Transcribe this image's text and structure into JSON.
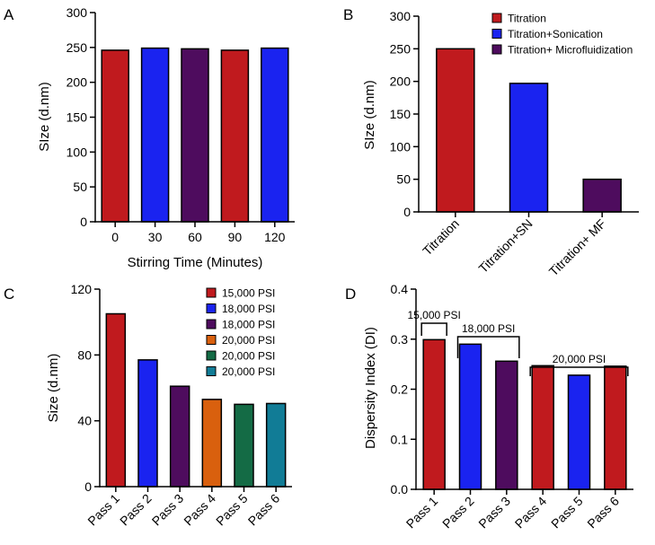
{
  "chart_data": [
    {
      "panel": "A",
      "type": "bar",
      "categories": [
        "0",
        "30",
        "60",
        "90",
        "120"
      ],
      "values": [
        246,
        249,
        248,
        246,
        249
      ],
      "bar_colors": [
        "#c01a1e",
        "#1a23f0",
        "#4e0c5e",
        "#c01a1e",
        "#1a23f0"
      ],
      "xlabel": "Stirring Time (Minutes)",
      "ylabel": "SIze (d.nm)",
      "ylim": [
        0,
        300
      ],
      "yticks": [
        "0",
        "50",
        "100",
        "150",
        "200",
        "250",
        "300"
      ],
      "ytick_values": [
        0,
        50,
        100,
        150,
        200,
        250,
        300
      ],
      "grid": false
    },
    {
      "panel": "B",
      "type": "bar",
      "categories": [
        "Titration",
        "Titration+SN",
        "Titration+ MF"
      ],
      "values": [
        250,
        197,
        50
      ],
      "bar_colors": [
        "#c01a1e",
        "#1a23f0",
        "#4e0c5e"
      ],
      "xlabel": "",
      "ylabel": "SIze (d.nm)",
      "ylim": [
        0,
        300
      ],
      "yticks": [
        "0",
        "50",
        "100",
        "150",
        "200",
        "250",
        "300"
      ],
      "ytick_values": [
        0,
        50,
        100,
        150,
        200,
        250,
        300
      ],
      "legend": [
        {
          "label": "Titration",
          "color": "#c01a1e"
        },
        {
          "label": "Titration+Sonication",
          "color": "#1a23f0"
        },
        {
          "label": "Titration+ Microfluidization",
          "color": "#4e0c5e"
        }
      ],
      "legend_position": "top-right",
      "grid": false
    },
    {
      "panel": "C",
      "type": "bar",
      "categories": [
        "Pass 1",
        "Pass 2",
        "Pass 3",
        "Pass 4",
        "Pass 5",
        "Pass 6"
      ],
      "values": [
        105,
        77,
        61,
        53,
        50,
        50.5
      ],
      "bar_colors": [
        "#c01a1e",
        "#1a23f0",
        "#4e0c5e",
        "#d9600e",
        "#146b45",
        "#117c96"
      ],
      "xlabel": "",
      "ylabel": "Size (d.nm)",
      "ylim": [
        0,
        120
      ],
      "yticks": [
        "0",
        "40",
        "80",
        "120"
      ],
      "ytick_values": [
        0,
        40,
        80,
        120
      ],
      "legend": [
        {
          "label": "15,000 PSI",
          "color": "#c01a1e"
        },
        {
          "label": "18,000 PSI",
          "color": "#1a23f0"
        },
        {
          "label": "18,000 PSI",
          "color": "#4e0c5e"
        },
        {
          "label": "20,000 PSI",
          "color": "#d9600e"
        },
        {
          "label": "20,000 PSI",
          "color": "#146b45"
        },
        {
          "label": "20,000 PSI",
          "color": "#117c96"
        }
      ],
      "legend_position": "top-right",
      "grid": false
    },
    {
      "panel": "D",
      "type": "bar",
      "categories": [
        "Pass 1",
        "Pass 2",
        "Pass 3",
        "Pass 4",
        "Pass 5",
        "Pass 6"
      ],
      "values": [
        0.299,
        0.29,
        0.256,
        0.247,
        0.228,
        0.246
      ],
      "bar_colors": [
        "#c01a1e",
        "#1a23f0",
        "#4e0c5e",
        "#c01a1e",
        "#1a23f0",
        "#c01a1e"
      ],
      "xlabel": "",
      "ylabel": "Dispersity Index (DI)",
      "ylim": [
        0,
        0.4
      ],
      "yticks": [
        "0.0",
        "0.1",
        "0.2",
        "0.3",
        "0.4"
      ],
      "ytick_values": [
        0,
        0.1,
        0.2,
        0.3,
        0.4
      ],
      "annotations": [
        {
          "label": "15,000 PSI",
          "from": 0,
          "to": 0
        },
        {
          "label": "18,000 PSI",
          "from": 1,
          "to": 2
        },
        {
          "label": "20,000 PSI",
          "from": 3,
          "to": 5
        }
      ],
      "grid": false
    }
  ]
}
